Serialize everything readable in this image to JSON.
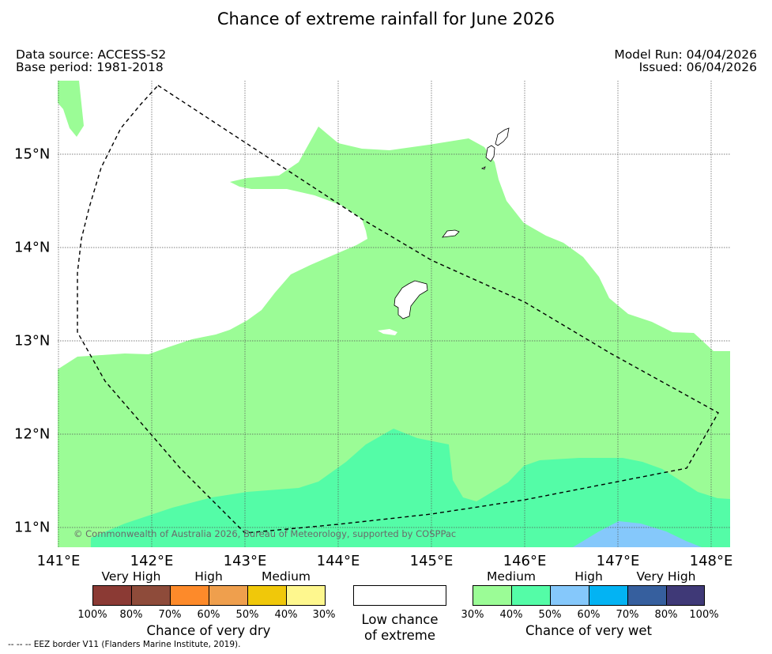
{
  "title": "Chance of extreme rainfall for June 2026",
  "data_source": "Data source: ACCESS-S2",
  "base_period": "Base period: 1981-2018",
  "model_run": "Model Run: 04/04/2026",
  "issued": "Issued: 06/04/2026",
  "copyright": "© Commonwealth of Australia 2026, Bureau of Meteorology, supported by COSPPac",
  "longitude_labels": [
    "141°E",
    "142°E",
    "143°E",
    "144°E",
    "145°E",
    "146°E",
    "147°E",
    "148°E"
  ],
  "latitude_labels": [
    "15°N",
    "14°N",
    "13°N",
    "12°N",
    "11°N"
  ],
  "map_extent": {
    "lon": [
      141.0,
      148.2
    ],
    "lat": [
      10.8,
      15.8
    ]
  },
  "colors": {
    "dry": [
      "#8b3a34",
      "#8e4b3a",
      "#fd8a2a",
      "#ef9f4d",
      "#f0c80a",
      "#fef78e"
    ],
    "wet": [
      "#9bfc96",
      "#54fca7",
      "#85c8fb",
      "#03b3f3",
      "#365f9e",
      "#3f3977"
    ],
    "low": "#ffffff",
    "wet_medium": "#9bfc96",
    "wet_high_50": "#54fca7",
    "wet_60": "#85c8fb"
  },
  "legend": {
    "dry": {
      "categories": [
        "Very High",
        "High",
        "Medium"
      ],
      "ticks": [
        "100%",
        "80%",
        "70%",
        "60%",
        "50%",
        "40%",
        "30%"
      ],
      "caption": "Chance of very dry"
    },
    "low": {
      "caption_line1": "Low chance",
      "caption_line2": "of extreme"
    },
    "wet": {
      "categories": [
        "Medium",
        "High",
        "Very High"
      ],
      "ticks": [
        "30%",
        "40%",
        "50%",
        "60%",
        "70%",
        "80%",
        "100%"
      ],
      "caption": "Chance of very wet"
    }
  },
  "eez_note": "-- -- -- EEZ border V11 (Flanders Marine Institute, 2019)."
}
